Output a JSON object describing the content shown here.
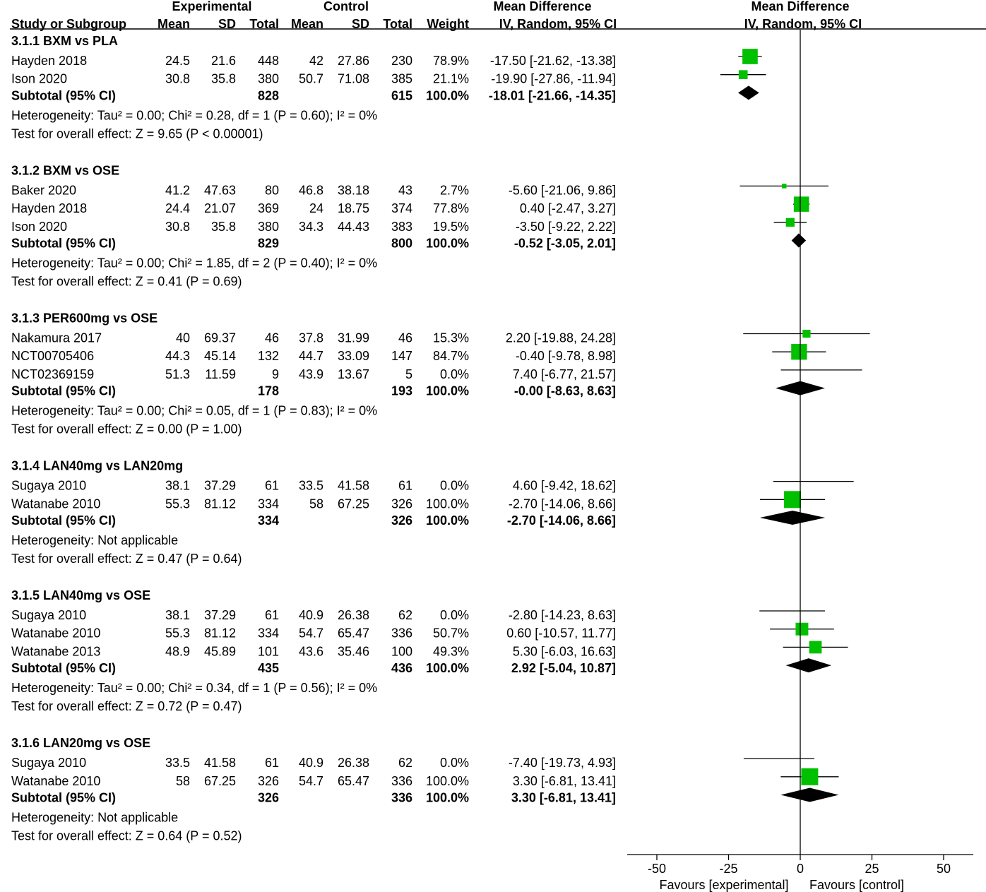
{
  "headers": {
    "experimental": "Experimental",
    "control": "Control",
    "md_group": "Mean Difference",
    "plot_group": "Mean Difference",
    "study": "Study or Subgroup",
    "exp_mean": "Mean",
    "exp_sd": "SD",
    "exp_total": "Total",
    "ctl_mean": "Mean",
    "ctl_sd": "SD",
    "ctl_total": "Total",
    "weight": "Weight",
    "md_method": "IV, Random, 95% CI",
    "plot_method": "IV, Random, 95% CI"
  },
  "axis": {
    "ticks": [
      -50,
      -25,
      0,
      25,
      50
    ],
    "favours_left": "Favours [experimental]",
    "favours_right": "Favours [control]"
  },
  "colors": {
    "box": "#00c000",
    "diamond": "#000000",
    "line": "#000000"
  },
  "chart_data": {
    "type": "forest",
    "xlim": [
      -50,
      50
    ],
    "groups": [
      {
        "title": "3.1.1 BXM vs PLA",
        "studies": [
          {
            "name": "Hayden 2018",
            "e_mean": "24.5",
            "e_sd": "21.6",
            "e_n": "448",
            "c_mean": "42",
            "c_sd": "27.86",
            "c_n": "230",
            "weight": "78.9%",
            "ci": "-17.50 [-21.62, -13.38]",
            "md": -17.5,
            "lo": -21.62,
            "hi": -13.38,
            "w": 78.9
          },
          {
            "name": "Ison 2020",
            "e_mean": "30.8",
            "e_sd": "35.8",
            "e_n": "380",
            "c_mean": "50.7",
            "c_sd": "71.08",
            "c_n": "385",
            "weight": "21.1%",
            "ci": "-19.90 [-27.86, -11.94]",
            "md": -19.9,
            "lo": -27.86,
            "hi": -11.94,
            "w": 21.1
          }
        ],
        "subtotal": {
          "label": "Subtotal (95% CI)",
          "e_n": "828",
          "c_n": "615",
          "weight": "100.0%",
          "ci": "-18.01 [-21.66, -14.35]",
          "md": -18.01,
          "lo": -21.66,
          "hi": -14.35
        },
        "heterogeneity": "Heterogeneity: Tau² = 0.00; Chi² = 0.28, df = 1 (P = 0.60); I² = 0%",
        "overall": "Test for overall effect: Z = 9.65 (P < 0.00001)"
      },
      {
        "title": "3.1.2 BXM vs OSE",
        "studies": [
          {
            "name": "Baker 2020",
            "e_mean": "41.2",
            "e_sd": "47.63",
            "e_n": "80",
            "c_mean": "46.8",
            "c_sd": "38.18",
            "c_n": "43",
            "weight": "2.7%",
            "ci": "-5.60 [-21.06, 9.86]",
            "md": -5.6,
            "lo": -21.06,
            "hi": 9.86,
            "w": 2.7
          },
          {
            "name": "Hayden 2018",
            "e_mean": "24.4",
            "e_sd": "21.07",
            "e_n": "369",
            "c_mean": "24",
            "c_sd": "18.75",
            "c_n": "374",
            "weight": "77.8%",
            "ci": "0.40 [-2.47, 3.27]",
            "md": 0.4,
            "lo": -2.47,
            "hi": 3.27,
            "w": 77.8
          },
          {
            "name": "Ison 2020",
            "e_mean": "30.8",
            "e_sd": "35.8",
            "e_n": "380",
            "c_mean": "34.3",
            "c_sd": "44.43",
            "c_n": "383",
            "weight": "19.5%",
            "ci": "-3.50 [-9.22, 2.22]",
            "md": -3.5,
            "lo": -9.22,
            "hi": 2.22,
            "w": 19.5
          }
        ],
        "subtotal": {
          "label": "Subtotal (95% CI)",
          "e_n": "829",
          "c_n": "800",
          "weight": "100.0%",
          "ci": "-0.52 [-3.05, 2.01]",
          "md": -0.52,
          "lo": -3.05,
          "hi": 2.01
        },
        "heterogeneity": "Heterogeneity: Tau² = 0.00; Chi² = 1.85, df = 2 (P = 0.40); I² = 0%",
        "overall": "Test for overall effect: Z = 0.41 (P = 0.69)"
      },
      {
        "title": "3.1.3 PER600mg vs OSE",
        "studies": [
          {
            "name": "Nakamura 2017",
            "e_mean": "40",
            "e_sd": "69.37",
            "e_n": "46",
            "c_mean": "37.8",
            "c_sd": "31.99",
            "c_n": "46",
            "weight": "15.3%",
            "ci": "2.20 [-19.88, 24.28]",
            "md": 2.2,
            "lo": -19.88,
            "hi": 24.28,
            "w": 15.3
          },
          {
            "name": "NCT00705406",
            "e_mean": "44.3",
            "e_sd": "45.14",
            "e_n": "132",
            "c_mean": "44.7",
            "c_sd": "33.09",
            "c_n": "147",
            "weight": "84.7%",
            "ci": "-0.40 [-9.78, 8.98]",
            "md": -0.4,
            "lo": -9.78,
            "hi": 8.98,
            "w": 84.7
          },
          {
            "name": "NCT02369159",
            "e_mean": "51.3",
            "e_sd": "11.59",
            "e_n": "9",
            "c_mean": "43.9",
            "c_sd": "13.67",
            "c_n": "5",
            "weight": "0.0%",
            "ci": "7.40 [-6.77, 21.57]",
            "md": 7.4,
            "lo": -6.77,
            "hi": 21.57,
            "w": 0
          }
        ],
        "subtotal": {
          "label": "Subtotal (95% CI)",
          "e_n": "178",
          "c_n": "193",
          "weight": "100.0%",
          "ci": "-0.00 [-8.63, 8.63]",
          "md": 0,
          "lo": -8.63,
          "hi": 8.63
        },
        "heterogeneity": "Heterogeneity: Tau² = 0.00; Chi² = 0.05, df = 1 (P = 0.83); I² = 0%",
        "overall": "Test for overall effect: Z = 0.00 (P = 1.00)"
      },
      {
        "title": "3.1.4 LAN40mg vs LAN20mg",
        "studies": [
          {
            "name": "Sugaya 2010",
            "e_mean": "38.1",
            "e_sd": "37.29",
            "e_n": "61",
            "c_mean": "33.5",
            "c_sd": "41.58",
            "c_n": "61",
            "weight": "0.0%",
            "ci": "4.60 [-9.42, 18.62]",
            "md": 4.6,
            "lo": -9.42,
            "hi": 18.62,
            "w": 0
          },
          {
            "name": "Watanabe 2010",
            "e_mean": "55.3",
            "e_sd": "81.12",
            "e_n": "334",
            "c_mean": "58",
            "c_sd": "67.25",
            "c_n": "326",
            "weight": "100.0%",
            "ci": "-2.70 [-14.06, 8.66]",
            "md": -2.7,
            "lo": -14.06,
            "hi": 8.66,
            "w": 100
          }
        ],
        "subtotal": {
          "label": "Subtotal (95% CI)",
          "e_n": "334",
          "c_n": "326",
          "weight": "100.0%",
          "ci": "-2.70 [-14.06, 8.66]",
          "md": -2.7,
          "lo": -14.06,
          "hi": 8.66
        },
        "heterogeneity": "Heterogeneity: Not applicable",
        "overall": "Test for overall effect: Z = 0.47 (P = 0.64)"
      },
      {
        "title": "3.1.5 LAN40mg vs OSE",
        "studies": [
          {
            "name": "Sugaya 2010",
            "e_mean": "38.1",
            "e_sd": "37.29",
            "e_n": "61",
            "c_mean": "40.9",
            "c_sd": "26.38",
            "c_n": "62",
            "weight": "0.0%",
            "ci": "-2.80 [-14.23, 8.63]",
            "md": -2.8,
            "lo": -14.23,
            "hi": 8.63,
            "w": 0
          },
          {
            "name": "Watanabe 2010",
            "e_mean": "55.3",
            "e_sd": "81.12",
            "e_n": "334",
            "c_mean": "54.7",
            "c_sd": "65.47",
            "c_n": "336",
            "weight": "50.7%",
            "ci": "0.60 [-10.57, 11.77]",
            "md": 0.6,
            "lo": -10.57,
            "hi": 11.77,
            "w": 50.7
          },
          {
            "name": "Watanabe 2013",
            "e_mean": "48.9",
            "e_sd": "45.89",
            "e_n": "101",
            "c_mean": "43.6",
            "c_sd": "35.46",
            "c_n": "100",
            "weight": "49.3%",
            "ci": "5.30 [-6.03, 16.63]",
            "md": 5.3,
            "lo": -6.03,
            "hi": 16.63,
            "w": 49.3
          }
        ],
        "subtotal": {
          "label": "Subtotal (95% CI)",
          "e_n": "435",
          "c_n": "436",
          "weight": "100.0%",
          "ci": "2.92 [-5.04, 10.87]",
          "md": 2.92,
          "lo": -5.04,
          "hi": 10.87
        },
        "heterogeneity": "Heterogeneity: Tau² = 0.00; Chi² = 0.34, df = 1 (P = 0.56); I² = 0%",
        "overall": "Test for overall effect: Z = 0.72 (P = 0.47)"
      },
      {
        "title": "3.1.6 LAN20mg vs OSE",
        "studies": [
          {
            "name": "Sugaya 2010",
            "e_mean": "33.5",
            "e_sd": "41.58",
            "e_n": "61",
            "c_mean": "40.9",
            "c_sd": "26.38",
            "c_n": "62",
            "weight": "0.0%",
            "ci": "-7.40 [-19.73, 4.93]",
            "md": -7.4,
            "lo": -19.73,
            "hi": 4.93,
            "w": 0
          },
          {
            "name": "Watanabe 2010",
            "e_mean": "58",
            "e_sd": "67.25",
            "e_n": "326",
            "c_mean": "54.7",
            "c_sd": "65.47",
            "c_n": "336",
            "weight": "100.0%",
            "ci": "3.30 [-6.81, 13.41]",
            "md": 3.3,
            "lo": -6.81,
            "hi": 13.41,
            "w": 100
          }
        ],
        "subtotal": {
          "label": "Subtotal (95% CI)",
          "e_n": "326",
          "c_n": "336",
          "weight": "100.0%",
          "ci": "3.30 [-6.81, 13.41]",
          "md": 3.3,
          "lo": -6.81,
          "hi": 13.41
        },
        "heterogeneity": "Heterogeneity: Not applicable",
        "overall": "Test for overall effect: Z = 0.64 (P = 0.52)"
      }
    ]
  }
}
